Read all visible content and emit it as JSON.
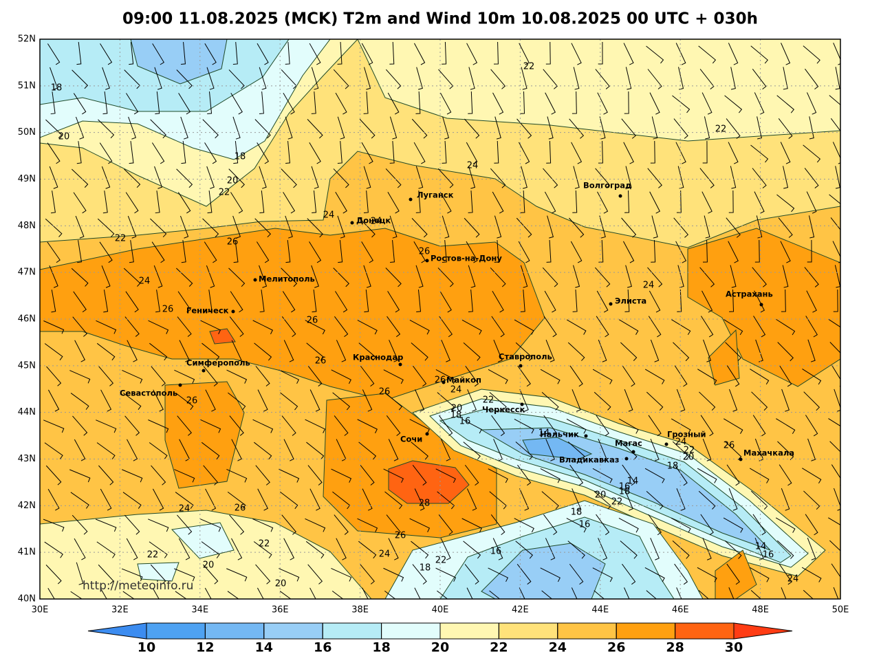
{
  "title": "09:00 11.08.2025 (MCK) T2m and Wind 10m 10.08.2025 00 UTC + 030h",
  "map": {
    "xlim": [
      30,
      50
    ],
    "ylim": [
      40,
      52
    ],
    "xticks": [
      {
        "value": 30,
        "label": "30E"
      },
      {
        "value": 32,
        "label": "32E"
      },
      {
        "value": 34,
        "label": "34E"
      },
      {
        "value": 36,
        "label": "36E"
      },
      {
        "value": 38,
        "label": "38E"
      },
      {
        "value": 40,
        "label": "40E"
      },
      {
        "value": 42,
        "label": "42E"
      },
      {
        "value": 44,
        "label": "44E"
      },
      {
        "value": 46,
        "label": "46E"
      },
      {
        "value": 48,
        "label": "48E"
      },
      {
        "value": 50,
        "label": "50E"
      }
    ],
    "yticks": [
      {
        "value": 40,
        "label": "40N"
      },
      {
        "value": 41,
        "label": "41N"
      },
      {
        "value": 42,
        "label": "42N"
      },
      {
        "value": 43,
        "label": "43N"
      },
      {
        "value": 44,
        "label": "44N"
      },
      {
        "value": 45,
        "label": "45N"
      },
      {
        "value": 46,
        "label": "46N"
      },
      {
        "value": 47,
        "label": "47N"
      },
      {
        "value": 48,
        "label": "48N"
      },
      {
        "value": 49,
        "label": "49N"
      },
      {
        "value": 50,
        "label": "50N"
      },
      {
        "value": 51,
        "label": "51N"
      },
      {
        "value": 52,
        "label": "52N"
      }
    ],
    "grid": true,
    "contour_labels": [
      18,
      20,
      18,
      20,
      22,
      24,
      22,
      26,
      24,
      26,
      26,
      26,
      26,
      22,
      22,
      24,
      24,
      26,
      24,
      26,
      24,
      26,
      22,
      20,
      18,
      16,
      14,
      24,
      22,
      20,
      26,
      18,
      14,
      16,
      18,
      20,
      22,
      28,
      24,
      26,
      18,
      16,
      26,
      22,
      24,
      22,
      16,
      22,
      14,
      16,
      20,
      18,
      20,
      24
    ],
    "cities": [
      "Луганск",
      "Донецк",
      "Волгоград",
      "Ростов-на-Дону",
      "Мелитополь",
      "Элиста",
      "Астрахань",
      "Геническ",
      "Симферополь",
      "Краснодар",
      "Ставрополь",
      "Севастополь",
      "Майкоп",
      "Черкесск",
      "Сочи",
      "Нальчик",
      "Грозный",
      "Магас",
      "Владикавказ",
      "Махачкала"
    ],
    "watermark": "http://meteoinfo.ru"
  },
  "colorbar": {
    "levels": [
      10,
      12,
      14,
      16,
      18,
      20,
      22,
      24,
      26,
      28,
      30
    ],
    "colors": [
      "#3c8cf0",
      "#4ea2f2",
      "#74b8f3",
      "#98cef6",
      "#b6ecf6",
      "#e2fdfc",
      "#fff7b2",
      "#ffe27a",
      "#ffc445",
      "#ffa010",
      "#ff6412",
      "#ff3c14"
    ]
  }
}
